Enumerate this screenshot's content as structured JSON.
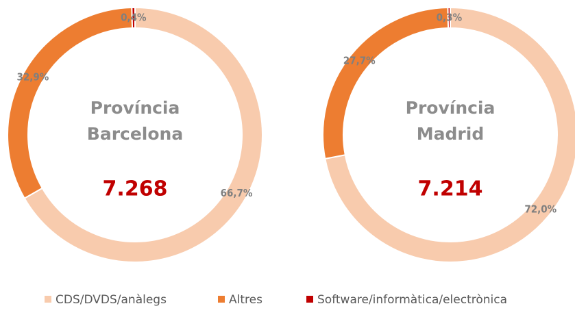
{
  "chart_data": [
    {
      "type": "pie",
      "title": [
        "Província",
        "Barcelona"
      ],
      "total": {
        "value": 7268,
        "label": "7.268"
      },
      "categories": [
        "CDS/DVDS/anàlegs",
        "Altres",
        "Software/informàtica/electrònica"
      ],
      "values": [
        66.7,
        32.9,
        0.4
      ],
      "value_labels": [
        "66,7%",
        "32,9%",
        "0,4%"
      ],
      "colors": [
        "#f8cbad",
        "#ed7d31",
        "#c00000"
      ]
    },
    {
      "type": "pie",
      "title": [
        "Província",
        "Madrid"
      ],
      "total": {
        "value": 7214,
        "label": "7.214"
      },
      "categories": [
        "CDS/DVDS/anàlegs",
        "Altres",
        "Software/informàtica/electrònica"
      ],
      "values": [
        72.0,
        27.7,
        0.3
      ],
      "value_labels": [
        "72,0%",
        "27,7%",
        "0,3%"
      ],
      "colors": [
        "#f8cbad",
        "#ed7d31",
        "#c00000"
      ]
    }
  ]
}
